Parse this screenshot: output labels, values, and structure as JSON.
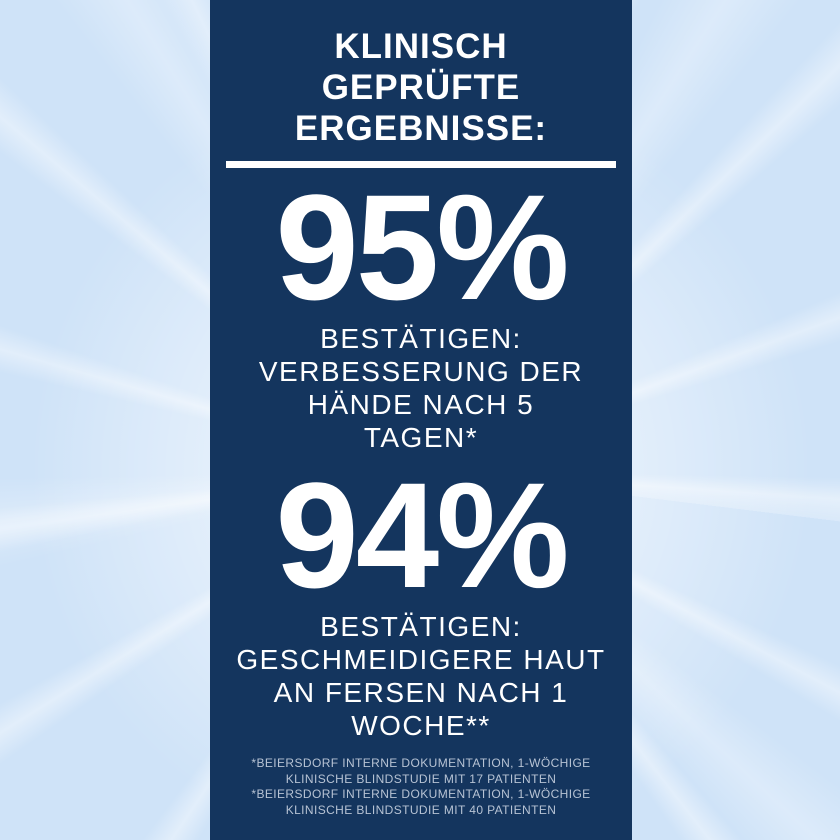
{
  "colors": {
    "panel_navy": "#14355e",
    "text_white": "#ffffff",
    "footnote_gray_blue": "#b7c3d4",
    "background_light_blue": "#cfe3f8",
    "sunburst_white": "#ffffff"
  },
  "panel": {
    "title": "KLINISCH\nGEPRÜFTE\nERGEBNISSE:",
    "stats": [
      {
        "value": "95%",
        "description": "BESTÄTIGEN:\nVERBESSERUNG DER\nHÄNDE NACH 5\nTAGEN*"
      },
      {
        "value": "94%",
        "description": "BESTÄTIGEN:\nGESCHMEIDIGERE HAUT\nAN FERSEN NACH 1\nWOCHE**"
      }
    ],
    "footnotes": [
      "*BEIERSDORF INTERNE DOKUMENTATION, 1-WÖCHIGE\nKLINISCHE BLINDSTUDIE MIT 17 PATIENTEN",
      "*BEIERSDORF INTERNE DOKUMENTATION, 1-WÖCHIGE\nKLINISCHE BLINDSTUDIE MIT 40 PATIENTEN"
    ]
  }
}
